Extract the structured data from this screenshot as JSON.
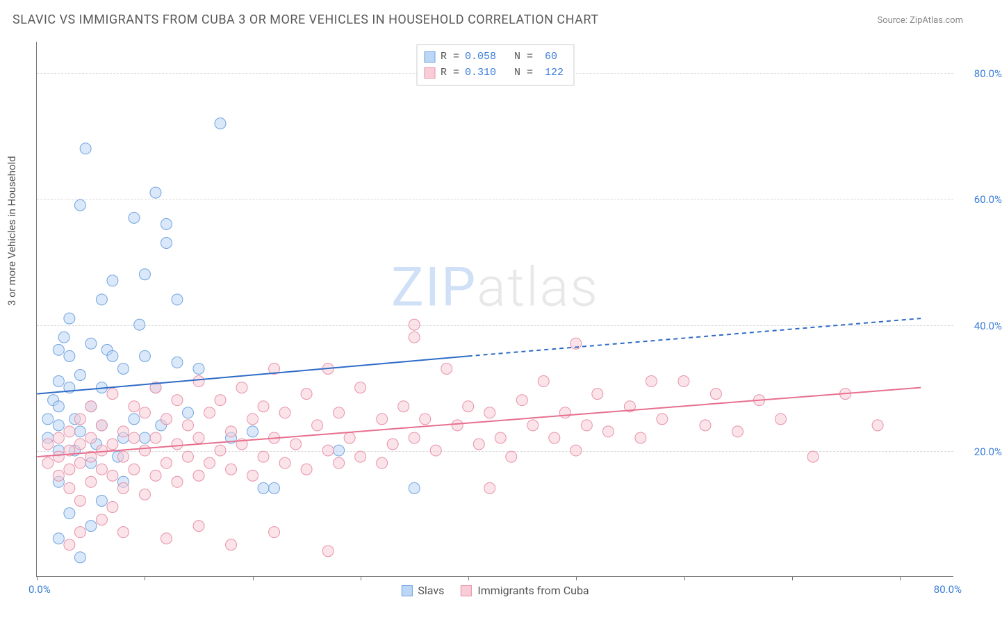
{
  "title": "SLAVIC VS IMMIGRANTS FROM CUBA 3 OR MORE VEHICLES IN HOUSEHOLD CORRELATION CHART",
  "source": "Source: ZipAtlas.com",
  "ylabel": "3 or more Vehicles in Household",
  "watermark_z": "ZIP",
  "watermark_rest": "atlas",
  "chart": {
    "type": "scatter",
    "xlim": [
      0,
      85
    ],
    "ylim": [
      0,
      85
    ],
    "xtick_positions": [
      0,
      10,
      20,
      30,
      40,
      50,
      60,
      70,
      80
    ],
    "x_axis_label_left": "0.0%",
    "x_axis_label_right": "80.0%",
    "y_gridlines": [
      {
        "value": 20,
        "label": "20.0%"
      },
      {
        "value": 40,
        "label": "40.0%"
      },
      {
        "value": 60,
        "label": "60.0%"
      },
      {
        "value": 80,
        "label": "80.0%"
      }
    ],
    "background_color": "#ffffff",
    "grid_color": "#d8d8d8",
    "axis_color": "#777777",
    "tick_label_color": "#3b7dd8",
    "marker_radius": 8,
    "marker_opacity": 0.55,
    "series": [
      {
        "name": "Slavs",
        "fill_color": "#bcd6f5",
        "stroke_color": "#6fa3e0",
        "R": "0.058",
        "N": "60",
        "regression": {
          "x1": 0,
          "y1": 29,
          "x2": 40,
          "y2": 35,
          "x2_ext": 82,
          "y2_ext": 41,
          "line_color": "#2e6bc7",
          "line_width": 2
        },
        "points": [
          [
            1,
            22
          ],
          [
            1,
            25
          ],
          [
            1.5,
            28
          ],
          [
            2,
            20
          ],
          [
            2,
            24
          ],
          [
            2,
            27
          ],
          [
            2,
            31
          ],
          [
            2,
            15
          ],
          [
            2.5,
            38
          ],
          [
            3,
            35
          ],
          [
            3,
            30
          ],
          [
            3,
            41
          ],
          [
            2,
            36
          ],
          [
            3.5,
            20
          ],
          [
            3.5,
            25
          ],
          [
            4,
            59
          ],
          [
            4,
            32
          ],
          [
            4,
            23
          ],
          [
            4.5,
            68
          ],
          [
            5,
            37
          ],
          [
            5,
            27
          ],
          [
            5,
            18
          ],
          [
            5.5,
            21
          ],
          [
            6,
            44
          ],
          [
            6,
            30
          ],
          [
            6,
            24
          ],
          [
            6.5,
            36
          ],
          [
            7,
            35
          ],
          [
            7,
            47
          ],
          [
            7.5,
            19
          ],
          [
            8,
            33
          ],
          [
            8,
            22
          ],
          [
            9,
            57
          ],
          [
            9,
            25
          ],
          [
            9.5,
            40
          ],
          [
            10,
            35
          ],
          [
            10,
            22
          ],
          [
            10,
            48
          ],
          [
            11,
            61
          ],
          [
            11,
            30
          ],
          [
            11.5,
            24
          ],
          [
            12,
            53
          ],
          [
            12,
            56
          ],
          [
            13,
            34
          ],
          [
            13,
            44
          ],
          [
            14,
            26
          ],
          [
            15,
            33
          ],
          [
            17,
            72
          ],
          [
            18,
            22
          ],
          [
            20,
            23
          ],
          [
            21,
            14
          ],
          [
            22,
            14
          ],
          [
            28,
            20
          ],
          [
            35,
            14
          ],
          [
            5,
            8
          ],
          [
            3,
            10
          ],
          [
            6,
            12
          ],
          [
            8,
            15
          ],
          [
            2,
            6
          ],
          [
            4,
            3
          ]
        ]
      },
      {
        "name": "Immigrants from Cuba",
        "fill_color": "#f8cdd7",
        "stroke_color": "#e890a7",
        "R": "0.310",
        "N": "122",
        "regression": {
          "x1": 0,
          "y1": 19,
          "x2": 82,
          "y2": 30,
          "line_color": "#e76f8e",
          "line_width": 2
        },
        "points": [
          [
            1,
            18
          ],
          [
            1,
            21
          ],
          [
            2,
            16
          ],
          [
            2,
            19
          ],
          [
            2,
            22
          ],
          [
            3,
            14
          ],
          [
            3,
            17
          ],
          [
            3,
            20
          ],
          [
            3,
            23
          ],
          [
            4,
            12
          ],
          [
            4,
            18
          ],
          [
            4,
            21
          ],
          [
            4,
            25
          ],
          [
            5,
            15
          ],
          [
            5,
            19
          ],
          [
            5,
            22
          ],
          [
            5,
            27
          ],
          [
            6,
            17
          ],
          [
            6,
            20
          ],
          [
            6,
            24
          ],
          [
            7,
            11
          ],
          [
            7,
            16
          ],
          [
            7,
            21
          ],
          [
            7,
            29
          ],
          [
            8,
            14
          ],
          [
            8,
            19
          ],
          [
            8,
            23
          ],
          [
            9,
            17
          ],
          [
            9,
            22
          ],
          [
            9,
            27
          ],
          [
            10,
            13
          ],
          [
            10,
            20
          ],
          [
            10,
            26
          ],
          [
            11,
            16
          ],
          [
            11,
            22
          ],
          [
            11,
            30
          ],
          [
            12,
            18
          ],
          [
            12,
            25
          ],
          [
            13,
            15
          ],
          [
            13,
            21
          ],
          [
            13,
            28
          ],
          [
            14,
            19
          ],
          [
            14,
            24
          ],
          [
            15,
            16
          ],
          [
            15,
            22
          ],
          [
            15,
            31
          ],
          [
            16,
            18
          ],
          [
            16,
            26
          ],
          [
            17,
            20
          ],
          [
            17,
            28
          ],
          [
            18,
            17
          ],
          [
            18,
            23
          ],
          [
            19,
            21
          ],
          [
            19,
            30
          ],
          [
            20,
            16
          ],
          [
            20,
            25
          ],
          [
            21,
            19
          ],
          [
            21,
            27
          ],
          [
            22,
            22
          ],
          [
            22,
            33
          ],
          [
            23,
            18
          ],
          [
            23,
            26
          ],
          [
            24,
            21
          ],
          [
            25,
            17
          ],
          [
            25,
            29
          ],
          [
            26,
            24
          ],
          [
            27,
            20
          ],
          [
            27,
            33
          ],
          [
            28,
            18
          ],
          [
            28,
            26
          ],
          [
            29,
            22
          ],
          [
            30,
            19
          ],
          [
            30,
            30
          ],
          [
            32,
            25
          ],
          [
            32,
            18
          ],
          [
            33,
            21
          ],
          [
            34,
            27
          ],
          [
            35,
            22
          ],
          [
            35,
            38
          ],
          [
            35,
            40
          ],
          [
            36,
            25
          ],
          [
            37,
            20
          ],
          [
            38,
            33
          ],
          [
            39,
            24
          ],
          [
            40,
            27
          ],
          [
            41,
            21
          ],
          [
            42,
            26
          ],
          [
            42,
            14
          ],
          [
            43,
            22
          ],
          [
            44,
            19
          ],
          [
            45,
            28
          ],
          [
            46,
            24
          ],
          [
            47,
            31
          ],
          [
            48,
            22
          ],
          [
            49,
            26
          ],
          [
            50,
            20
          ],
          [
            50,
            37
          ],
          [
            51,
            24
          ],
          [
            52,
            29
          ],
          [
            53,
            23
          ],
          [
            55,
            27
          ],
          [
            56,
            22
          ],
          [
            57,
            31
          ],
          [
            58,
            25
          ],
          [
            60,
            31
          ],
          [
            62,
            24
          ],
          [
            63,
            29
          ],
          [
            65,
            23
          ],
          [
            67,
            28
          ],
          [
            69,
            25
          ],
          [
            72,
            19
          ],
          [
            75,
            29
          ],
          [
            78,
            24
          ],
          [
            12,
            6
          ],
          [
            15,
            8
          ],
          [
            18,
            5
          ],
          [
            22,
            7
          ],
          [
            27,
            4
          ],
          [
            8,
            7
          ],
          [
            6,
            9
          ],
          [
            4,
            7
          ],
          [
            3,
            5
          ]
        ]
      }
    ]
  },
  "legend_top": {
    "rows": [
      {
        "swatch_fill": "#bcd6f5",
        "swatch_stroke": "#6fa3e0",
        "r_label": "R =",
        "r_val": "0.058",
        "n_label": "N =",
        "n_val": "60"
      },
      {
        "swatch_fill": "#f8cdd7",
        "swatch_stroke": "#e890a7",
        "r_label": "R =",
        "r_val": "0.310",
        "n_label": "N =",
        "n_val": "122"
      }
    ]
  },
  "legend_bottom": {
    "items": [
      {
        "swatch_fill": "#bcd6f5",
        "swatch_stroke": "#6fa3e0",
        "label": "Slavs"
      },
      {
        "swatch_fill": "#f8cdd7",
        "swatch_stroke": "#e890a7",
        "label": "Immigrants from Cuba"
      }
    ]
  }
}
